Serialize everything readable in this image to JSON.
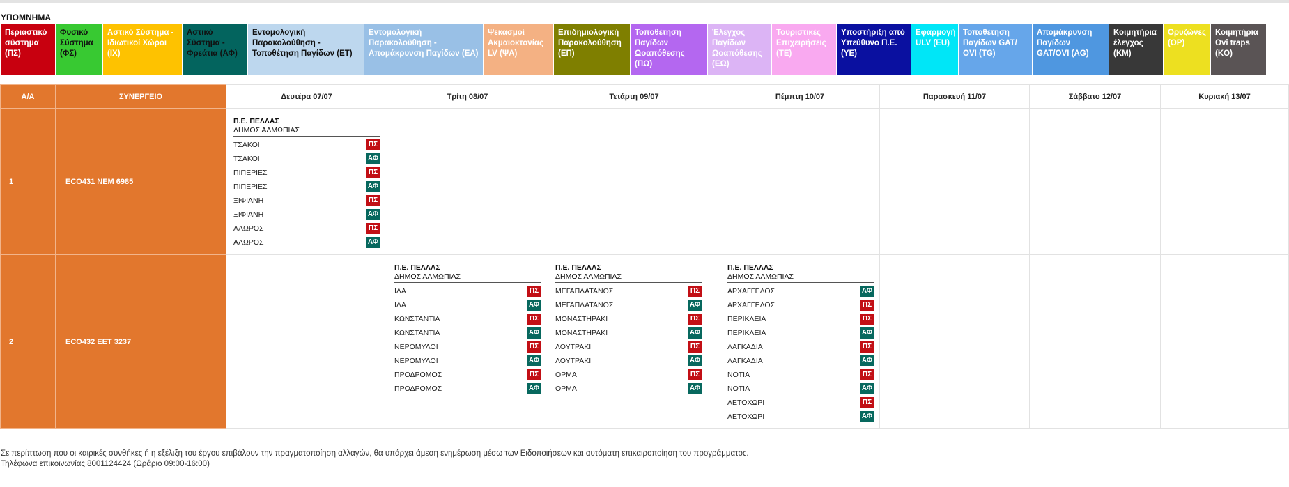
{
  "legend": {
    "title": "ΥΠΟΜΝΗΜΑ",
    "items": [
      {
        "label": "Περιαστικό σύστημα (ΠΣ)",
        "bg": "#c8000f",
        "fg": "#ffffff"
      },
      {
        "label": "Φυσικό Σύστημα (ΦΣ)",
        "bg": "#38c932",
        "fg": "#111111"
      },
      {
        "label": "Αστικό Σύστημα - Ιδιωτικοί Χώροι (ΙΧ)",
        "bg": "#fec200",
        "fg": "#ffffff"
      },
      {
        "label": "Αστικό Σύστημα - Φρεάτια (ΑΦ)",
        "bg": "#03645e",
        "fg": "#111111"
      },
      {
        "label": "Εντομολογική Παρακολούθηση - Τοποθέτηση Παγίδων (ΕΤ)",
        "bg": "#bdd7ee",
        "fg": "#111111"
      },
      {
        "label": "Εντομολογική Παρακολούθηση - Απομάκρυνση Παγίδων (ΕΑ)",
        "bg": "#99c0e6",
        "fg": "#ffffff"
      },
      {
        "label": "Ψεκασμοί Ακμαιοκτονίας LV (ΨΑ)",
        "bg": "#f4b183",
        "fg": "#ffffff"
      },
      {
        "label": "Επιδημιολογική Παρακολούθηση (ΕΠ)",
        "bg": "#7f7f00",
        "fg": "#ffffff"
      },
      {
        "label": "Τοποθέτηση Παγίδων Ωοαπόθεσης (ΠΩ)",
        "bg": "#b467f0",
        "fg": "#ffffff"
      },
      {
        "label": "Έλεγχος Παγίδων Ωοαπόθεσης (ΕΩ)",
        "bg": "#dcb4f5",
        "fg": "#ffffff"
      },
      {
        "label": "Τουριστικές Επιχειρήσεις (ΤΕ)",
        "bg": "#f9a9f0",
        "fg": "#ffffff"
      },
      {
        "label": "Υποστήριξη από Υπεύθυνο Π.Ε. (ΥΕ)",
        "bg": "#0a10a0",
        "fg": "#ffffff"
      },
      {
        "label": "Εφαρμογή ULV (EU)",
        "bg": "#00e6f7",
        "fg": "#ffffff"
      },
      {
        "label": "Τοποθέτηση Παγίδων GAT/ OVI (TG)",
        "bg": "#66a6ea",
        "fg": "#ffffff"
      },
      {
        "label": "Απομάκρυνση Παγίδων GAT/OVI (AG)",
        "bg": "#4f97e0",
        "fg": "#ffffff"
      },
      {
        "label": "Κοιμητήρια έλεγχος (ΚΜ)",
        "bg": "#383838",
        "fg": "#ffffff"
      },
      {
        "label": "Ορυζώνες (ΟΡ)",
        "bg": "#ede020",
        "fg": "#ffffff"
      },
      {
        "label": "Κοιμητήρια Ovi traps (KO)",
        "bg": "#5a5455",
        "fg": "#ffffff"
      }
    ]
  },
  "colors": {
    "ps": "#c20f15",
    "af": "#07685e",
    "orange": "#e2772d"
  },
  "table": {
    "headers": {
      "aa": "Α/Α",
      "synergeio": "ΣΥΝΕΡΓΕΙΟ"
    },
    "days": [
      "Δευτέρα 07/07",
      "Τρίτη 08/07",
      "Τετάρτη 09/07",
      "Πέμπτη 10/07",
      "Παρασκευή 11/07",
      "Σάββατο 12/07",
      "Κυριακή 13/07"
    ],
    "rows": [
      {
        "aa": "1",
        "synergeio": "ECO431  ΝΕΜ 6985",
        "days": [
          {
            "region": "Π.Ε. ΠΕΛΛΑΣ",
            "municipality": "ΔΗΜΟΣ ΑΛΜΩΠΙΑΣ",
            "entries": [
              {
                "place": "ΤΣΑΚΟΙ",
                "code": "ΠΣ"
              },
              {
                "place": "ΤΣΑΚΟΙ",
                "code": "ΑΦ"
              },
              {
                "place": "ΠΙΠΕΡΙΕΣ",
                "code": "ΠΣ"
              },
              {
                "place": "ΠΙΠΕΡΙΕΣ",
                "code": "ΑΦ"
              },
              {
                "place": "ΞΙΦΙΑΝΗ",
                "code": "ΠΣ"
              },
              {
                "place": "ΞΙΦΙΑΝΗ",
                "code": "ΑΦ"
              },
              {
                "place": "ΑΛΩΡΟΣ",
                "code": "ΠΣ"
              },
              {
                "place": "ΑΛΩΡΟΣ",
                "code": "ΑΦ"
              }
            ]
          },
          null,
          null,
          null,
          null,
          null,
          null
        ]
      },
      {
        "aa": "2",
        "synergeio": "ECO432  ΕΕΤ 3237",
        "days": [
          null,
          {
            "region": "Π.Ε. ΠΕΛΛΑΣ",
            "municipality": "ΔΗΜΟΣ ΑΛΜΩΠΙΑΣ",
            "entries": [
              {
                "place": "ΙΔΑ",
                "code": "ΠΣ"
              },
              {
                "place": "ΙΔΑ",
                "code": "ΑΦ"
              },
              {
                "place": "ΚΩΝΣΤΑΝΤΙΑ",
                "code": "ΠΣ"
              },
              {
                "place": "ΚΩΝΣΤΑΝΤΙΑ",
                "code": "ΑΦ"
              },
              {
                "place": "ΝΕΡΟΜΥΛΟΙ",
                "code": "ΠΣ"
              },
              {
                "place": "ΝΕΡΟΜΥΛΟΙ",
                "code": "ΑΦ"
              },
              {
                "place": "ΠΡΟΔΡΟΜΟΣ",
                "code": "ΠΣ"
              },
              {
                "place": "ΠΡΟΔΡΟΜΟΣ",
                "code": "ΑΦ"
              }
            ]
          },
          {
            "region": "Π.Ε. ΠΕΛΛΑΣ",
            "municipality": "ΔΗΜΟΣ ΑΛΜΩΠΙΑΣ",
            "entries": [
              {
                "place": "ΜΕΓΑΠΛΑΤΑΝΟΣ",
                "code": "ΠΣ"
              },
              {
                "place": "ΜΕΓΑΠΛΑΤΑΝΟΣ",
                "code": "ΑΦ"
              },
              {
                "place": "ΜΟΝΑΣΤΗΡΑΚΙ",
                "code": "ΠΣ"
              },
              {
                "place": "ΜΟΝΑΣΤΗΡΑΚΙ",
                "code": "ΑΦ"
              },
              {
                "place": "ΛΟΥΤΡΑΚΙ",
                "code": "ΠΣ"
              },
              {
                "place": "ΛΟΥΤΡΑΚΙ",
                "code": "ΑΦ"
              },
              {
                "place": "ΟΡΜΑ",
                "code": "ΠΣ"
              },
              {
                "place": "ΟΡΜΑ",
                "code": "ΑΦ"
              }
            ]
          },
          {
            "region": "Π.Ε. ΠΕΛΛΑΣ",
            "municipality": "ΔΗΜΟΣ ΑΛΜΩΠΙΑΣ",
            "entries": [
              {
                "place": "ΑΡΧΑΓΓΕΛΟΣ",
                "code": "ΑΦ"
              },
              {
                "place": "ΑΡΧΑΓΓΕΛΟΣ",
                "code": "ΠΣ"
              },
              {
                "place": "ΠΕΡΙΚΛΕΙΑ",
                "code": "ΠΣ"
              },
              {
                "place": "ΠΕΡΙΚΛΕΙΑ",
                "code": "ΑΦ"
              },
              {
                "place": "ΛΑΓΚΑΔΙΑ",
                "code": "ΠΣ"
              },
              {
                "place": "ΛΑΓΚΑΔΙΑ",
                "code": "ΑΦ"
              },
              {
                "place": "ΝΟΤΙΑ",
                "code": "ΠΣ"
              },
              {
                "place": "ΝΟΤΙΑ",
                "code": "ΑΦ"
              },
              {
                "place": "ΑΕΤΟΧΩΡΙ",
                "code": "ΠΣ"
              },
              {
                "place": "ΑΕΤΟΧΩΡΙ",
                "code": "ΑΦ"
              }
            ]
          },
          null,
          null,
          null
        ]
      }
    ]
  },
  "footer": {
    "notice": "Σε περίπτωση που οι καιρικές συνθήκες ή η εξέλιξη του έργου επιβάλουν την πραγματοποίηση αλλαγών, θα υπάρχει άμεση ενημέρωση μέσω των Ειδοποιήσεων και αυτόματη επικαιροποίηση του προγράμματος.",
    "phone": "Τηλέφωνα επικοινωνίας 8001124424 (Ωράριο 09:00-16:00)"
  }
}
